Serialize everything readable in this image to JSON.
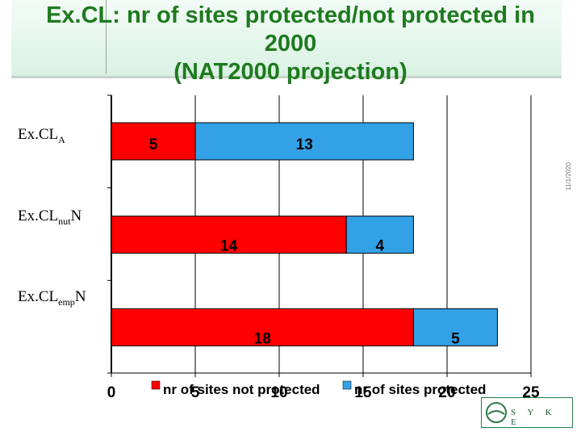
{
  "title_lines": [
    "Ex.CL: nr of sites protected/not protected in",
    "2000",
    "(NAT2000 projection)"
  ],
  "side_date": "11/1/2020",
  "logo_text": "S Y K E",
  "chart_data": {
    "type": "bar",
    "orientation": "horizontal",
    "stacked": true,
    "title": "Ex.CL: nr of sites protected/not protected in 2000 (NAT2000 projection)",
    "categories": [
      {
        "base": "Ex.CL",
        "sub": "A",
        "tail": ""
      },
      {
        "base": "Ex.CL",
        "sub": "nut",
        "tail": "N"
      },
      {
        "base": "Ex.CL",
        "sub": "emp",
        "tail": "N"
      }
    ],
    "series": [
      {
        "name": "nr of sites not protected",
        "color": "#ff0000",
        "values": [
          5,
          14,
          18
        ]
      },
      {
        "name": "nr of sites protected",
        "color": "#33a1e6",
        "values": [
          13,
          4,
          5
        ]
      }
    ],
    "xlim": [
      0,
      25
    ],
    "xticks": [
      "0",
      "5",
      "10",
      "15",
      "20",
      "25"
    ],
    "grid": "vertical",
    "legend_position": "bottom"
  }
}
